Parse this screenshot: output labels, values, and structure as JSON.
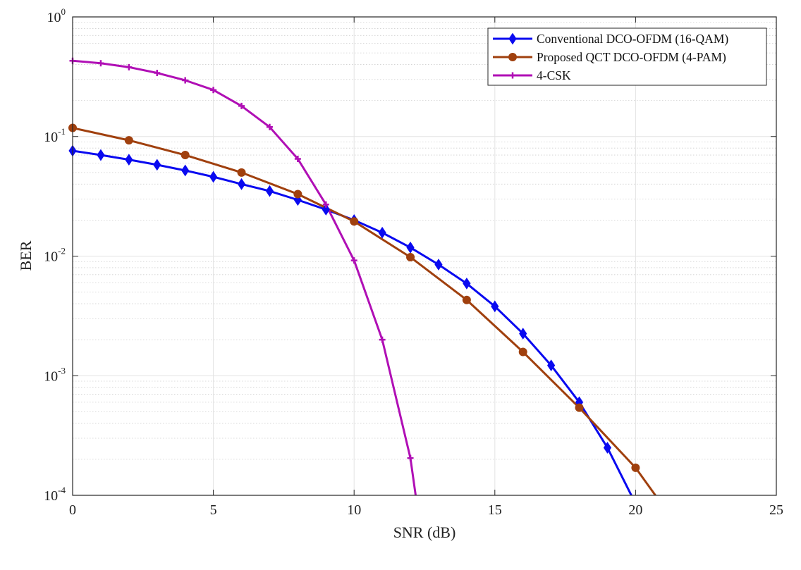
{
  "chart_data": {
    "type": "line",
    "title": "",
    "xlabel": "SNR (dB)",
    "ylabel": "BER",
    "xlim": [
      0,
      25
    ],
    "ylim": [
      0.0001,
      1
    ],
    "yscale": "log",
    "grid": true,
    "minor_grid": true,
    "legend_position": "top-right",
    "x_ticks": [
      0,
      5,
      10,
      15,
      20,
      25
    ],
    "x_tick_labels": [
      "0",
      "5",
      "10",
      "15",
      "20",
      "25"
    ],
    "y_ticks": [
      {
        "value": 0.0001,
        "base": "10",
        "exp": "-4"
      },
      {
        "value": 0.001,
        "base": "10",
        "exp": "-3"
      },
      {
        "value": 0.01,
        "base": "10",
        "exp": "-2"
      },
      {
        "value": 0.1,
        "base": "10",
        "exp": "-1"
      },
      {
        "value": 1,
        "base": "10",
        "exp": "0"
      }
    ],
    "series": [
      {
        "name": "Conventional DCO-OFDM (16-QAM)",
        "color": "#0a0af0",
        "marker": "diamond",
        "x": [
          0,
          1,
          2,
          3,
          4,
          5,
          6,
          7,
          8,
          9,
          10,
          11,
          12,
          13,
          14,
          15,
          16,
          17,
          18,
          19,
          20
        ],
        "y": [
          0.076,
          0.07,
          0.064,
          0.058,
          0.052,
          0.046,
          0.04,
          0.035,
          0.0295,
          0.0245,
          0.02,
          0.0157,
          0.0118,
          0.0085,
          0.0059,
          0.0038,
          0.00225,
          0.00122,
          0.0006,
          0.00025,
          8.5e-05
        ]
      },
      {
        "name": "Proposed QCT DCO-OFDM (4-PAM)",
        "color": "#a0400e",
        "marker": "circle",
        "x": [
          0,
          2,
          4,
          6,
          8,
          10,
          12,
          14,
          16,
          18,
          20,
          21
        ],
        "y": [
          0.118,
          0.093,
          0.07,
          0.05,
          0.033,
          0.0195,
          0.0098,
          0.0043,
          0.00158,
          0.00054,
          0.00017,
          8e-05
        ]
      },
      {
        "name": "4-CSK",
        "color": "#b00fb5",
        "marker": "plus",
        "x": [
          0,
          1,
          2,
          3,
          4,
          5,
          6,
          7,
          8,
          9,
          10,
          11,
          12,
          12.5
        ],
        "y": [
          0.43,
          0.41,
          0.38,
          0.34,
          0.295,
          0.245,
          0.18,
          0.12,
          0.065,
          0.027,
          0.0092,
          0.002,
          0.000205,
          3e-05
        ]
      }
    ]
  }
}
